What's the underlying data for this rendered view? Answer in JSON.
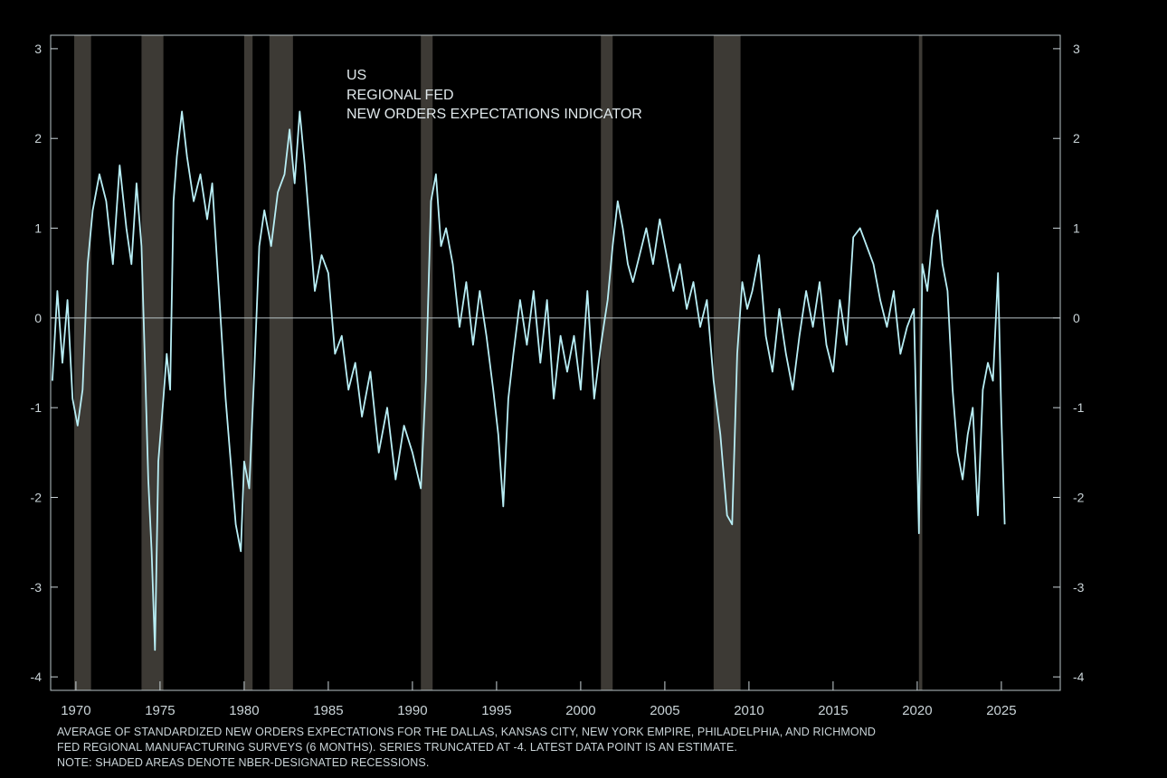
{
  "chart_data": {
    "type": "line",
    "title_lines": [
      "US",
      "REGIONAL FED",
      "NEW ORDERS EXPECTATIONS INDICATOR"
    ],
    "xlim": [
      1968.5,
      2028.5
    ],
    "ylim": [
      -4.15,
      3.15
    ],
    "x_ticks": [
      1970,
      1975,
      1980,
      1985,
      1990,
      1995,
      2000,
      2005,
      2010,
      2015,
      2020,
      2025
    ],
    "y_ticks": [
      3,
      2,
      1,
      0,
      -1,
      -2,
      -3,
      -4
    ],
    "grid": false,
    "zero_line": true,
    "legend": "none",
    "colors": {
      "series": "#b8eef5",
      "recession": "#3d3a35",
      "axis": "#c9d3d7",
      "background": "#000000"
    },
    "recessions": [
      [
        1969.9,
        1970.9
      ],
      [
        1973.9,
        1975.2
      ],
      [
        1980.0,
        1980.5
      ],
      [
        1981.5,
        1982.9
      ],
      [
        1990.5,
        1991.2
      ],
      [
        2001.2,
        2001.9
      ],
      [
        2007.9,
        2009.5
      ],
      [
        2020.1,
        2020.3
      ]
    ],
    "series": [
      {
        "x": [
          1968.6,
          1968.9,
          1969.2,
          1969.5,
          1969.8,
          1970.1,
          1970.4,
          1970.7,
          1971.0,
          1971.4,
          1971.8,
          1972.2,
          1972.6,
          1973.0,
          1973.3,
          1973.6,
          1973.9,
          1974.1,
          1974.3,
          1974.5,
          1974.7,
          1974.9,
          1975.2,
          1975.4,
          1975.6,
          1975.8,
          1976.0,
          1976.3,
          1976.6,
          1977.0,
          1977.4,
          1977.8,
          1978.1,
          1978.4,
          1978.7,
          1978.9,
          1979.2,
          1979.5,
          1979.8,
          1980.0,
          1980.3,
          1980.6,
          1980.9,
          1981.2,
          1981.6,
          1982.0,
          1982.4,
          1982.7,
          1983.0,
          1983.3,
          1983.6,
          1983.9,
          1984.2,
          1984.6,
          1985.0,
          1985.4,
          1985.8,
          1986.2,
          1986.6,
          1987.0,
          1987.5,
          1988.0,
          1988.5,
          1989.0,
          1989.5,
          1990.0,
          1990.5,
          1990.8,
          1991.1,
          1991.4,
          1991.7,
          1992.0,
          1992.4,
          1992.8,
          1993.2,
          1993.6,
          1994.0,
          1994.4,
          1994.8,
          1995.1,
          1995.4,
          1995.7,
          1996.0,
          1996.4,
          1996.8,
          1997.2,
          1997.6,
          1998.0,
          1998.4,
          1998.8,
          1999.2,
          1999.6,
          2000.0,
          2000.4,
          2000.8,
          2001.2,
          2001.6,
          2001.9,
          2002.2,
          2002.5,
          2002.8,
          2003.1,
          2003.5,
          2003.9,
          2004.3,
          2004.7,
          2005.1,
          2005.5,
          2005.9,
          2006.3,
          2006.7,
          2007.1,
          2007.5,
          2007.9,
          2008.3,
          2008.7,
          2009.0,
          2009.3,
          2009.6,
          2009.9,
          2010.2,
          2010.6,
          2011.0,
          2011.4,
          2011.8,
          2012.2,
          2012.6,
          2013.0,
          2013.4,
          2013.8,
          2014.2,
          2014.6,
          2015.0,
          2015.4,
          2015.8,
          2016.2,
          2016.6,
          2017.0,
          2017.4,
          2017.8,
          2018.2,
          2018.6,
          2019.0,
          2019.4,
          2019.8,
          2020.1,
          2020.3,
          2020.6,
          2020.9,
          2021.2,
          2021.5,
          2021.8,
          2022.1,
          2022.4,
          2022.7,
          2023.0,
          2023.3,
          2023.6,
          2023.9,
          2024.2,
          2024.5,
          2024.8,
          2025.0,
          2025.2
        ],
        "y": [
          -0.7,
          0.3,
          -0.5,
          0.2,
          -0.9,
          -1.2,
          -0.8,
          0.6,
          1.2,
          1.6,
          1.3,
          0.6,
          1.7,
          1.0,
          0.6,
          1.5,
          0.8,
          -0.5,
          -1.8,
          -2.6,
          -3.7,
          -1.6,
          -0.9,
          -0.4,
          -0.8,
          1.3,
          1.8,
          2.3,
          1.8,
          1.3,
          1.6,
          1.1,
          1.5,
          0.6,
          -0.3,
          -0.9,
          -1.6,
          -2.3,
          -2.6,
          -1.6,
          -1.9,
          -0.6,
          0.8,
          1.2,
          0.8,
          1.4,
          1.6,
          2.1,
          1.5,
          2.3,
          1.7,
          1.0,
          0.3,
          0.7,
          0.5,
          -0.4,
          -0.2,
          -0.8,
          -0.5,
          -1.1,
          -0.6,
          -1.5,
          -1.0,
          -1.8,
          -1.2,
          -1.5,
          -1.9,
          -0.7,
          1.3,
          1.6,
          0.8,
          1.0,
          0.6,
          -0.1,
          0.4,
          -0.3,
          0.3,
          -0.2,
          -0.8,
          -1.3,
          -2.1,
          -0.9,
          -0.4,
          0.2,
          -0.3,
          0.3,
          -0.5,
          0.2,
          -0.9,
          -0.2,
          -0.6,
          -0.2,
          -0.8,
          0.3,
          -0.9,
          -0.3,
          0.2,
          0.8,
          1.3,
          1.0,
          0.6,
          0.4,
          0.7,
          1.0,
          0.6,
          1.1,
          0.7,
          0.3,
          0.6,
          0.1,
          0.4,
          -0.1,
          0.2,
          -0.7,
          -1.3,
          -2.2,
          -2.3,
          -0.4,
          0.4,
          0.1,
          0.3,
          0.7,
          -0.2,
          -0.6,
          0.1,
          -0.4,
          -0.8,
          -0.2,
          0.3,
          -0.1,
          0.4,
          -0.3,
          -0.6,
          0.2,
          -0.3,
          0.9,
          1.0,
          0.8,
          0.6,
          0.2,
          -0.1,
          0.3,
          -0.4,
          -0.1,
          0.1,
          -2.4,
          0.6,
          0.3,
          0.9,
          1.2,
          0.6,
          0.3,
          -0.8,
          -1.5,
          -1.8,
          -1.3,
          -1.0,
          -2.2,
          -0.8,
          -0.5,
          -0.7,
          0.5,
          -1.1,
          -2.3
        ]
      }
    ]
  },
  "footnote_lines": [
    "AVERAGE OF STANDARDIZED NEW ORDERS EXPECTATIONS FOR THE DALLAS, KANSAS CITY, NEW YORK EMPIRE, PHILADELPHIA, AND RICHMOND",
    "FED REGIONAL MANUFACTURING SURVEYS (6 MONTHS). SERIES TRUNCATED AT -4. LATEST DATA POINT IS AN ESTIMATE.",
    "NOTE: SHADED AREAS DENOTE NBER-DESIGNATED RECESSIONS."
  ]
}
